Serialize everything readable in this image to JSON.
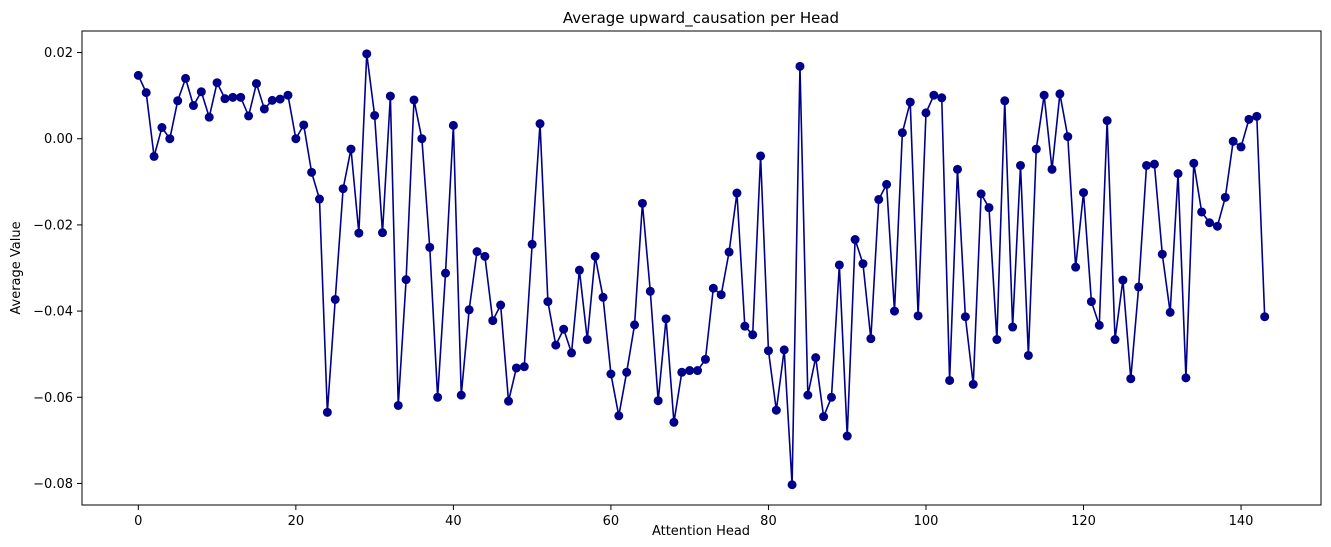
{
  "chart_data": {
    "type": "line",
    "title": "Average upward_causation per Head",
    "xlabel": "Attention Head",
    "ylabel": "Average Value",
    "xlim": [
      -7.15,
      150.15
    ],
    "ylim": [
      -0.085,
      0.025
    ],
    "xticks": [
      0,
      20,
      40,
      60,
      80,
      100,
      120,
      140
    ],
    "xtick_labels": [
      "0",
      "20",
      "40",
      "60",
      "80",
      "100",
      "120",
      "140"
    ],
    "yticks": [
      -0.08,
      -0.06,
      -0.04,
      -0.02,
      0.0,
      0.02
    ],
    "ytick_labels": [
      "−0.08",
      "−0.06",
      "−0.04",
      "−0.02",
      "0.00",
      "0.02"
    ],
    "grid": false,
    "marker": "circle",
    "color": "#00008b",
    "series": [
      {
        "x": [
          0,
          1,
          2,
          3,
          4,
          5,
          6,
          7,
          8,
          9,
          10,
          11,
          12,
          13,
          14,
          15,
          16,
          17,
          18,
          19,
          20,
          21,
          22,
          23,
          24,
          25,
          26,
          27,
          28,
          29,
          30,
          31,
          32,
          33,
          34,
          35,
          36,
          37,
          38,
          39,
          40,
          41,
          42,
          43,
          44,
          45,
          46,
          47,
          48,
          49,
          50,
          51,
          52,
          53,
          54,
          55,
          56,
          57,
          58,
          59,
          60,
          61,
          62,
          63,
          64,
          65,
          66,
          67,
          68,
          69,
          70,
          71,
          72,
          73,
          74,
          75,
          76,
          77,
          78,
          79,
          80,
          81,
          82,
          83,
          84,
          85,
          86,
          87,
          88,
          89,
          90,
          91,
          92,
          93,
          94,
          95,
          96,
          97,
          98,
          99,
          100,
          101,
          102,
          103,
          104,
          105,
          106,
          107,
          108,
          109,
          110,
          111,
          112,
          113,
          114,
          115,
          116,
          117,
          118,
          119,
          120,
          121,
          122,
          123,
          124,
          125,
          126,
          127,
          128,
          129,
          130,
          131,
          132,
          133,
          134,
          135,
          136,
          137,
          138,
          139,
          140,
          141,
          142,
          143
        ],
        "values": [
          0.0147,
          0.0107,
          -0.0041,
          0.0026,
          0.0,
          0.0088,
          0.014,
          0.0077,
          0.0109,
          0.005,
          0.013,
          0.0093,
          0.0096,
          0.0096,
          0.0053,
          0.0128,
          0.0069,
          0.0089,
          0.0092,
          0.0101,
          0.0,
          0.0032,
          -0.0078,
          -0.014,
          -0.0635,
          -0.0373,
          -0.0116,
          -0.0024,
          -0.0219,
          0.0197,
          0.0054,
          -0.0218,
          0.0099,
          -0.0619,
          -0.0327,
          0.009,
          0.0,
          -0.0252,
          -0.06,
          -0.0312,
          0.0031,
          -0.0595,
          -0.0397,
          -0.0262,
          -0.0273,
          -0.0422,
          -0.0386,
          -0.0609,
          -0.0532,
          -0.0529,
          -0.0245,
          0.0035,
          -0.0378,
          -0.0479,
          -0.0442,
          -0.0497,
          -0.0305,
          -0.0466,
          -0.0273,
          -0.0368,
          -0.0546,
          -0.0643,
          -0.0542,
          -0.0432,
          -0.015,
          -0.0354,
          -0.0608,
          -0.0418,
          -0.0658,
          -0.0542,
          -0.0538,
          -0.0538,
          -0.0512,
          -0.0347,
          -0.0362,
          -0.0263,
          -0.0126,
          -0.0435,
          -0.0455,
          -0.004,
          -0.0492,
          -0.063,
          -0.049,
          -0.0803,
          0.0168,
          -0.0595,
          -0.0508,
          -0.0645,
          -0.06,
          -0.0293,
          -0.069,
          -0.0234,
          -0.029,
          -0.0464,
          -0.0141,
          -0.0106,
          -0.04,
          0.0014,
          0.0085,
          -0.0411,
          0.006,
          0.0101,
          0.0095,
          -0.0561,
          -0.0071,
          -0.0413,
          -0.057,
          -0.0128,
          -0.016,
          -0.0466,
          0.0088,
          -0.0437,
          -0.0062,
          -0.0503,
          -0.0024,
          0.0101,
          -0.0071,
          0.0104,
          0.0005,
          -0.0298,
          -0.0125,
          -0.0378,
          -0.0433,
          0.0042,
          -0.0466,
          -0.0328,
          -0.0557,
          -0.0344,
          -0.0062,
          -0.0059,
          -0.0268,
          -0.0403,
          -0.0081,
          -0.0555,
          -0.0057,
          -0.017,
          -0.0195,
          -0.0203,
          -0.0136,
          -0.0006,
          -0.0019,
          0.0045,
          0.0052,
          -0.0413
        ]
      }
    ]
  }
}
